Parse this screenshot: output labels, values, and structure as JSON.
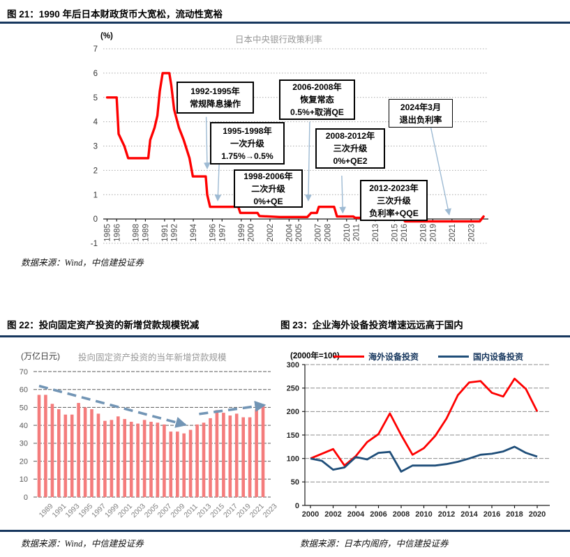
{
  "figure21": {
    "heading": "图 21：1990 年后日本财政货币大宽松，流动性宽裕",
    "unit": "(%)",
    "chart_title": "日本中央银行政策利率",
    "source": "数据来源：Wind，中信建投证券",
    "annotations": [
      {
        "lines": [
          "1992-1995年",
          "常规降息操作"
        ]
      },
      {
        "lines": [
          "1995-1998年",
          "一次升级",
          "1.75%→0.5%"
        ]
      },
      {
        "lines": [
          "2006-2008年",
          "恢复常态",
          "0.5%+取消QE"
        ]
      },
      {
        "lines": [
          "2008-2012年",
          "三次升级",
          "0%+QE2"
        ]
      },
      {
        "lines": [
          "1998-2006年",
          "二次升级",
          "0%+QE"
        ]
      },
      {
        "lines": [
          "2012-2023年",
          "三次升级",
          "负利率+QQE"
        ]
      },
      {
        "lines": [
          "2024年3月",
          "退出负利率"
        ]
      }
    ]
  },
  "figure22": {
    "heading": "图 22：投向固定资产投资的新增贷款规模锐减",
    "unit": "(万亿日元)",
    "chart_title": "投向固定资产投资的当年新增贷款规模",
    "source": "数据来源：Wind，中信建投证券"
  },
  "figure23": {
    "heading": "图 23：企业海外设备投资增速远远高于国内",
    "unit": "(2000年=100)",
    "legend": [
      "海外设备投资",
      "国内设备投资"
    ],
    "source": "数据来源：日本内阁府，中信建投证券"
  },
  "colors": {
    "rule_navy": "#17375E",
    "line_red": "#FE0000",
    "bar_salmon": "#F47C7C",
    "trend_blue": "#7295B5",
    "series_blue": "#1F4E79",
    "arrow_blue": "#9DBAD3"
  },
  "chart_data": [
    {
      "id": "boj-policy-rate",
      "type": "line",
      "title": "日本中央银行政策利率",
      "ylabel": "(%)",
      "xlim": [
        1984.6,
        2024.8
      ],
      "ylim": [
        -1,
        7
      ],
      "yticks": [
        -1,
        0,
        1,
        2,
        3,
        4,
        5,
        6,
        7
      ],
      "xticks": [
        1985,
        1986,
        1988,
        1989,
        1991,
        1992,
        1994,
        1996,
        1997,
        1999,
        2000,
        2002,
        2004,
        2005,
        2007,
        2008,
        2010,
        2011,
        2013,
        2015,
        2016,
        2018,
        2019,
        2021,
        2023
      ],
      "grid": "dotted-horizontal",
      "series": [
        {
          "name": "日本中央银行政策利率",
          "color": "#FE0000",
          "points": [
            [
              1985,
              5
            ],
            [
              1986,
              5
            ],
            [
              1986.2,
              3.5
            ],
            [
              1986.8,
              3
            ],
            [
              1987.2,
              2.5
            ],
            [
              1989.3,
              2.5
            ],
            [
              1989.5,
              3.25
            ],
            [
              1989.95,
              3.75
            ],
            [
              1990.25,
              4.25
            ],
            [
              1990.5,
              5.25
            ],
            [
              1990.8,
              6
            ],
            [
              1991.5,
              6
            ],
            [
              1991.7,
              5.5
            ],
            [
              1992.0,
              4.5
            ],
            [
              1992.5,
              3.75
            ],
            [
              1993.0,
              3.25
            ],
            [
              1993.6,
              2.5
            ],
            [
              1993.95,
              1.75
            ],
            [
              1995.3,
              1.75
            ],
            [
              1995.45,
              1.0
            ],
            [
              1995.75,
              0.5
            ],
            [
              1998.7,
              0.5
            ],
            [
              1998.9,
              0.25
            ],
            [
              2000.7,
              0.25
            ],
            [
              2000.9,
              0.12
            ],
            [
              2003,
              0.08
            ],
            [
              2005.9,
              0.08
            ],
            [
              2006.3,
              0.25
            ],
            [
              2006.9,
              0.25
            ],
            [
              2007.1,
              0.5
            ],
            [
              2008.7,
              0.5
            ],
            [
              2008.85,
              0.3
            ],
            [
              2009.0,
              0.1
            ],
            [
              2010.7,
              0.1
            ],
            [
              2010.9,
              0.05
            ],
            [
              2015.9,
              0.05
            ],
            [
              2016.1,
              -0.1
            ],
            [
              2023.9,
              -0.1
            ],
            [
              2024.3,
              0.1
            ]
          ]
        }
      ],
      "arrows": [
        {
          "from": [
            1995.35,
            4.2
          ],
          "to": [
            1995.45,
            2.1
          ]
        },
        {
          "from": [
            1996.7,
            2.25
          ],
          "to": [
            1996.55,
            0.78
          ]
        },
        {
          "from": [
            2006.15,
            4.0
          ],
          "to": [
            2006.0,
            0.78
          ]
        },
        {
          "from": [
            2009.5,
            1.78
          ],
          "to": [
            2009.6,
            0.28
          ]
        },
        {
          "from": [
            2018.8,
            3.75
          ],
          "to": [
            2020.7,
            0.2
          ]
        }
      ]
    },
    {
      "id": "new-loans-to-fixed-investment",
      "type": "bar",
      "title": "投向固定资产投资的当年新增贷款规模",
      "ylabel": "(万亿日元)",
      "ylim": [
        0,
        70
      ],
      "yticks": [
        0,
        10,
        20,
        30,
        40,
        50,
        60,
        70
      ],
      "bar_color": "#F47C7C",
      "categories": [
        1989,
        1990,
        1991,
        1992,
        1993,
        1994,
        1995,
        1996,
        1997,
        1998,
        1999,
        2000,
        2001,
        2002,
        2003,
        2004,
        2005,
        2006,
        2007,
        2008,
        2009,
        2010,
        2011,
        2012,
        2013,
        2014,
        2015,
        2016,
        2017,
        2018,
        2019,
        2020,
        2021,
        2022,
        2023
      ],
      "values": [
        57,
        57,
        52,
        49,
        46,
        46,
        52.5,
        50,
        49,
        46.5,
        42.5,
        43,
        45,
        43.5,
        42,
        41,
        43,
        42,
        41.5,
        40.5,
        36.5,
        36.5,
        35.5,
        37.5,
        40.5,
        41.5,
        44,
        48.5,
        47,
        45.5,
        46.5,
        44.5,
        44.5,
        49,
        51.5
      ],
      "xtick_labels": [
        "1989",
        "1991",
        "1993",
        "1995",
        "1997",
        "1999",
        "2001",
        "2003",
        "2005",
        "2007",
        "2009",
        "2011",
        "2013",
        "2015",
        "2017",
        "2019",
        "2021",
        "2023"
      ],
      "trend_arrows": [
        {
          "x1": 1989,
          "y1": 62,
          "x2": 2011.2,
          "y2": 40.3
        },
        {
          "x1": 2013.3,
          "y1": 46.3,
          "x2": 2023.2,
          "y2": 51.3
        }
      ]
    },
    {
      "id": "equipment-investment-index",
      "type": "line",
      "title": "企业海外设备投资与国内设备投资指数",
      "ylabel": "(2000年=100)",
      "ylim": [
        0,
        300
      ],
      "yticks": [
        0,
        50,
        100,
        150,
        200,
        250,
        300
      ],
      "x": [
        2000,
        2001,
        2002,
        2003,
        2004,
        2005,
        2006,
        2007,
        2008,
        2009,
        2010,
        2011,
        2012,
        2013,
        2014,
        2015,
        2016,
        2017,
        2018,
        2019,
        2020
      ],
      "xticks": [
        2000,
        2002,
        2004,
        2006,
        2008,
        2010,
        2012,
        2014,
        2016,
        2018,
        2020
      ],
      "series": [
        {
          "name": "海外设备投资",
          "color": "#FE0000",
          "values": [
            100,
            110,
            120,
            85,
            105,
            135,
            152,
            196,
            150,
            108,
            122,
            148,
            185,
            235,
            262,
            265,
            240,
            232,
            270,
            248,
            200
          ]
        },
        {
          "name": "国内设备投资",
          "color": "#1F4E79",
          "values": [
            100,
            95,
            76,
            81,
            103,
            98,
            112,
            114,
            72,
            85,
            85,
            85,
            88,
            93,
            100,
            108,
            110,
            115,
            125,
            112,
            104
          ]
        }
      ]
    }
  ]
}
